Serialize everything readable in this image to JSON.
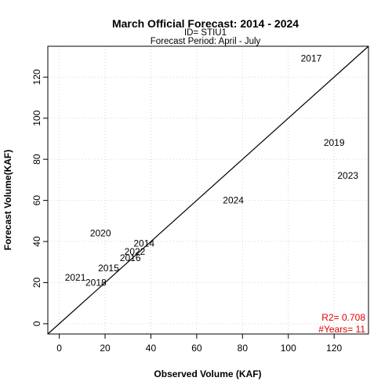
{
  "chart_data": {
    "type": "scatter",
    "title": "March Official Forecast: 2014 - 2024",
    "subtitle_lines": [
      "ID= STIU1",
      "Forecast Period:  April - July"
    ],
    "xlabel": "Observed Volume (KAF)",
    "ylabel": "Forecast Volume(KAF)",
    "xlim": [
      -5,
      135
    ],
    "ylim": [
      -5,
      135
    ],
    "xticks": [
      0,
      20,
      40,
      60,
      80,
      100,
      120
    ],
    "yticks": [
      0,
      20,
      40,
      60,
      80,
      100,
      120
    ],
    "grid": true,
    "reference_line": "1:1",
    "points": [
      {
        "label": "2014",
        "x": 37,
        "y": 39
      },
      {
        "label": "2015",
        "x": 21.5,
        "y": 27
      },
      {
        "label": "2016",
        "x": 31,
        "y": 32
      },
      {
        "label": "2017",
        "x": 110,
        "y": 129
      },
      {
        "label": "2018",
        "x": 16,
        "y": 20
      },
      {
        "label": "2019",
        "x": 120,
        "y": 88
      },
      {
        "label": "2020",
        "x": 18,
        "y": 44
      },
      {
        "label": "2021",
        "x": 7,
        "y": 22.5
      },
      {
        "label": "2022",
        "x": 33,
        "y": 35
      },
      {
        "label": "2023",
        "x": 126,
        "y": 72
      },
      {
        "label": "2024",
        "x": 76,
        "y": 60
      }
    ],
    "stats": {
      "r2": "R2=  0.708",
      "years": "#Years=  11",
      "color": "#e00000"
    }
  }
}
